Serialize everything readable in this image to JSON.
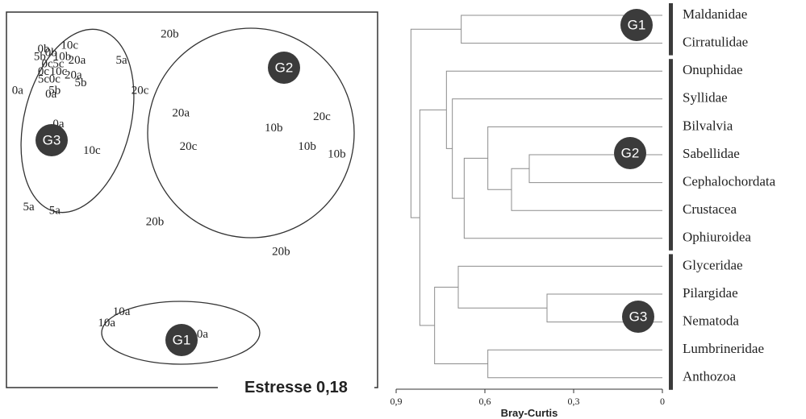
{
  "chart_data": [
    {
      "type": "scatter",
      "title": "",
      "stress_label": "Estresse 0,18",
      "points": [
        {
          "label": "0b",
          "x": 0.1,
          "y": 0.9
        },
        {
          "label": "0b",
          "x": 0.12,
          "y": 0.89
        },
        {
          "label": "10c",
          "x": 0.17,
          "y": 0.91
        },
        {
          "label": "5b",
          "x": 0.09,
          "y": 0.88
        },
        {
          "label": "10b",
          "x": 0.15,
          "y": 0.88
        },
        {
          "label": "20a",
          "x": 0.19,
          "y": 0.87
        },
        {
          "label": "0c",
          "x": 0.11,
          "y": 0.86
        },
        {
          "label": "5c",
          "x": 0.14,
          "y": 0.86
        },
        {
          "label": "0c",
          "x": 0.1,
          "y": 0.84
        },
        {
          "label": "10c",
          "x": 0.14,
          "y": 0.84
        },
        {
          "label": "20a",
          "x": 0.18,
          "y": 0.83
        },
        {
          "label": "5c",
          "x": 0.1,
          "y": 0.82
        },
        {
          "label": "0c",
          "x": 0.13,
          "y": 0.82
        },
        {
          "label": "5b",
          "x": 0.2,
          "y": 0.81
        },
        {
          "label": "5b",
          "x": 0.13,
          "y": 0.79
        },
        {
          "label": "0a",
          "x": 0.03,
          "y": 0.79
        },
        {
          "label": "0a",
          "x": 0.12,
          "y": 0.78
        },
        {
          "label": "0a",
          "x": 0.14,
          "y": 0.7
        },
        {
          "label": "5a",
          "x": 0.06,
          "y": 0.48
        },
        {
          "label": "5a",
          "x": 0.13,
          "y": 0.47
        },
        {
          "label": "20b",
          "x": 0.44,
          "y": 0.94
        },
        {
          "label": "5a",
          "x": 0.31,
          "y": 0.87
        },
        {
          "label": "20c",
          "x": 0.36,
          "y": 0.79
        },
        {
          "label": "20a",
          "x": 0.47,
          "y": 0.73
        },
        {
          "label": "20c",
          "x": 0.85,
          "y": 0.72
        },
        {
          "label": "10b",
          "x": 0.72,
          "y": 0.69
        },
        {
          "label": "10b",
          "x": 0.81,
          "y": 0.64
        },
        {
          "label": "10b",
          "x": 0.89,
          "y": 0.62
        },
        {
          "label": "20c",
          "x": 0.49,
          "y": 0.64
        },
        {
          "label": "10c",
          "x": 0.23,
          "y": 0.63
        },
        {
          "label": "20b",
          "x": 0.4,
          "y": 0.44
        },
        {
          "label": "20b",
          "x": 0.74,
          "y": 0.36
        },
        {
          "label": "10a",
          "x": 0.31,
          "y": 0.2
        },
        {
          "label": "10a",
          "x": 0.27,
          "y": 0.17
        },
        {
          "label": "10a",
          "x": 0.52,
          "y": 0.14
        }
      ],
      "groups": [
        {
          "name": "G3",
          "labels": [
            "0a",
            "0b",
            "0c",
            "5a",
            "5b",
            "5c",
            "10b",
            "10c",
            "20a"
          ]
        },
        {
          "name": "G2",
          "labels": [
            "5a",
            "10b",
            "10c",
            "20a",
            "20b",
            "20c"
          ]
        },
        {
          "name": "G1",
          "labels": [
            "10a"
          ]
        }
      ]
    },
    {
      "type": "dendrogram",
      "xlabel": "Bray-Curtis",
      "xlim": [
        0.9,
        0
      ],
      "xticks": [
        "0,9",
        "0,6",
        "0,3",
        "0"
      ],
      "leaves": [
        "Maldanidae",
        "Cirratulidae",
        "Onuphidae",
        "Syllidae",
        "Bilvalvia",
        "Sabellidae",
        "Cephalochordata",
        "Crustacea",
        "Ophiuroidea",
        "Glyceridae",
        "Pilargidae",
        "Nematoda",
        "Lumbrineridae",
        "Anthozoa"
      ],
      "merges": [
        {
          "a": "Maldanidae",
          "b": "Cirratulidae",
          "height": 0.68
        },
        {
          "a": "Sabellidae",
          "b": "Cephalochordata",
          "height": 0.45
        },
        {
          "a": "[Sabellidae,Cephalochordata]",
          "b": "Crustacea",
          "height": 0.51
        },
        {
          "a": "Bilvalvia",
          "b": "[Sabellidae..Crustacea]",
          "height": 0.59
        },
        {
          "a": "[Bilvalvia..Crustacea]",
          "b": "Ophiuroidea",
          "height": 0.67
        },
        {
          "a": "Syllidae",
          "b": "[Bilvalvia..Ophiuroidea]",
          "height": 0.71
        },
        {
          "a": "Onuphidae",
          "b": "[Syllidae..Ophiuroidea]",
          "height": 0.73
        },
        {
          "a": "Pilargidae",
          "b": "Nematoda",
          "height": 0.39
        },
        {
          "a": "Glyceridae",
          "b": "[Pilargidae,Nematoda]",
          "height": 0.69
        },
        {
          "a": "Lumbrineridae",
          "b": "Anthozoa",
          "height": 0.59
        },
        {
          "a": "[Glyceridae..Nematoda]",
          "b": "[Lumbrineridae,Anthozoa]",
          "height": 0.77
        },
        {
          "a": "[Onuphidae..Ophiuroidea]",
          "b": "[Glyceridae..Anthozoa]",
          "height": 0.82
        },
        {
          "a": "[Maldanidae,Cirratulidae]",
          "b": "[Onuphidae..Anthozoa]",
          "height": 0.85
        }
      ],
      "groups": [
        {
          "name": "G1",
          "members": [
            "Maldanidae",
            "Cirratulidae"
          ]
        },
        {
          "name": "G2",
          "members": [
            "Onuphidae",
            "Syllidae",
            "Bilvalvia",
            "Sabellidae",
            "Cephalochordata",
            "Crustacea",
            "Ophiuroidea"
          ]
        },
        {
          "name": "G3",
          "members": [
            "Glyceridae",
            "Pilargidae",
            "Nematoda",
            "Lumbrineridae",
            "Anthozoa"
          ]
        }
      ]
    }
  ]
}
